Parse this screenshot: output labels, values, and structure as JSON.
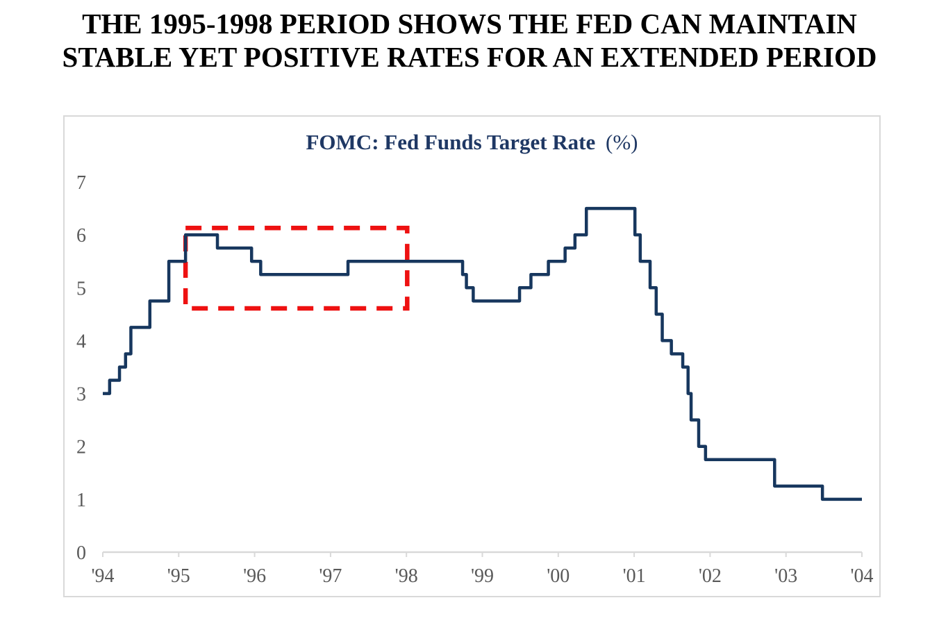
{
  "heading": {
    "line1": "THE 1995-1998 PERIOD SHOWS THE FED CAN MAINTAIN",
    "line2": "STABLE YET POSITIVE RATES FOR AN EXTENDED PERIOD"
  },
  "chart_data": {
    "type": "line",
    "line_style": "step-after",
    "title": "FOMC: Fed Funds Target Rate (%)",
    "title_bold": "FOMC: Fed Funds Target Rate",
    "title_unit": "(%)",
    "xlabel": "",
    "ylabel": "",
    "xlim": [
      1994,
      2004
    ],
    "ylim": [
      0,
      7
    ],
    "grid": false,
    "legend": "none",
    "x_ticks": [
      {
        "year": 1994,
        "label": "'94"
      },
      {
        "year": 1995,
        "label": "'95"
      },
      {
        "year": 1996,
        "label": "'96"
      },
      {
        "year": 1997,
        "label": "'97"
      },
      {
        "year": 1998,
        "label": "'98"
      },
      {
        "year": 1999,
        "label": "'99"
      },
      {
        "year": 2000,
        "label": "'00"
      },
      {
        "year": 2001,
        "label": "'01"
      },
      {
        "year": 2002,
        "label": "'02"
      },
      {
        "year": 2003,
        "label": "'03"
      },
      {
        "year": 2004,
        "label": "'04"
      }
    ],
    "y_ticks": [
      {
        "value": 0,
        "label": "0"
      },
      {
        "value": 1,
        "label": "1"
      },
      {
        "value": 2,
        "label": "2"
      },
      {
        "value": 3,
        "label": "3"
      },
      {
        "value": 4,
        "label": "4"
      },
      {
        "value": 5,
        "label": "5"
      },
      {
        "value": 6,
        "label": "6"
      },
      {
        "value": 7,
        "label": "7"
      }
    ],
    "series": [
      {
        "name": "Fed Funds Target Rate (%)",
        "color": "#17375e",
        "end_year": 2004.0,
        "points": [
          [
            1994.0,
            3.0
          ],
          [
            1994.09,
            3.25
          ],
          [
            1994.22,
            3.5
          ],
          [
            1994.3,
            3.75
          ],
          [
            1994.37,
            4.25
          ],
          [
            1994.62,
            4.75
          ],
          [
            1994.87,
            5.5
          ],
          [
            1995.09,
            6.0
          ],
          [
            1995.51,
            5.75
          ],
          [
            1995.96,
            5.5
          ],
          [
            1996.08,
            5.25
          ],
          [
            1997.23,
            5.5
          ],
          [
            1998.74,
            5.25
          ],
          [
            1998.79,
            5.0
          ],
          [
            1998.88,
            4.75
          ],
          [
            1999.49,
            5.0
          ],
          [
            1999.64,
            5.25
          ],
          [
            1999.87,
            5.5
          ],
          [
            2000.09,
            5.75
          ],
          [
            2000.22,
            6.0
          ],
          [
            2000.37,
            6.5
          ],
          [
            2001.01,
            6.0
          ],
          [
            2001.08,
            5.5
          ],
          [
            2001.21,
            5.0
          ],
          [
            2001.29,
            4.5
          ],
          [
            2001.37,
            4.0
          ],
          [
            2001.49,
            3.75
          ],
          [
            2001.64,
            3.5
          ],
          [
            2001.71,
            3.0
          ],
          [
            2001.75,
            2.5
          ],
          [
            2001.85,
            2.0
          ],
          [
            2001.94,
            1.75
          ],
          [
            2002.85,
            1.25
          ],
          [
            2003.48,
            1.0
          ]
        ]
      }
    ],
    "highlight_box": {
      "year_start": 1995.09,
      "year_end": 1998.01,
      "rate_low": 4.61,
      "rate_high": 6.13,
      "color": "#ee1111",
      "line_style": "dashed"
    }
  },
  "colors": {
    "heading_text": "#000000",
    "chart_title": "#1f3864",
    "line": "#17375e",
    "highlight": "#ee1111",
    "axis_text": "#595959",
    "frame": "#d9d9d9",
    "background": "#ffffff"
  }
}
